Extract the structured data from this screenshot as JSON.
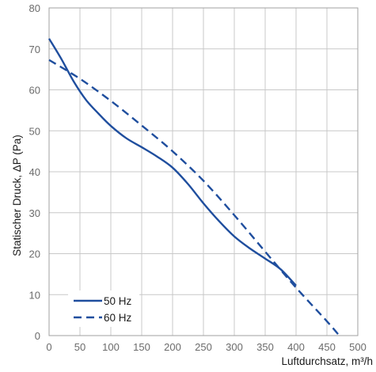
{
  "chart_data": {
    "type": "line",
    "title": "",
    "xlabel": "Luftdurchsatz, m³/h",
    "ylabel": "Statischer Druck, ΔP (Pa)",
    "xlim": [
      0,
      500
    ],
    "ylim": [
      0,
      80
    ],
    "xticks": [
      0,
      50,
      100,
      150,
      200,
      250,
      300,
      350,
      400,
      450,
      500
    ],
    "yticks": [
      0,
      10,
      20,
      30,
      40,
      50,
      60,
      70,
      80
    ],
    "grid": true,
    "legend_position": "bottom-left",
    "series": [
      {
        "name": "50 Hz",
        "style": "solid",
        "color": "#1f4e9e",
        "x": [
          0,
          20,
          40,
          60,
          80,
          100,
          125,
          150,
          175,
          200,
          225,
          250,
          275,
          300,
          325,
          350,
          375,
          400
        ],
        "y": [
          72.5,
          67.5,
          62,
          57.5,
          54.2,
          51.2,
          48.2,
          46,
          43.7,
          41,
          37,
          32.3,
          28,
          24.2,
          21.3,
          18.8,
          16.2,
          12.2
        ]
      },
      {
        "name": "60 Hz",
        "style": "dashed",
        "color": "#1f4e9e",
        "x": [
          0,
          50,
          100,
          150,
          200,
          250,
          300,
          350,
          400,
          450,
          470
        ],
        "y": [
          67.3,
          62.7,
          57.3,
          51.3,
          45,
          37.8,
          29.4,
          20.5,
          11.7,
          3.5,
          0
        ]
      }
    ]
  }
}
